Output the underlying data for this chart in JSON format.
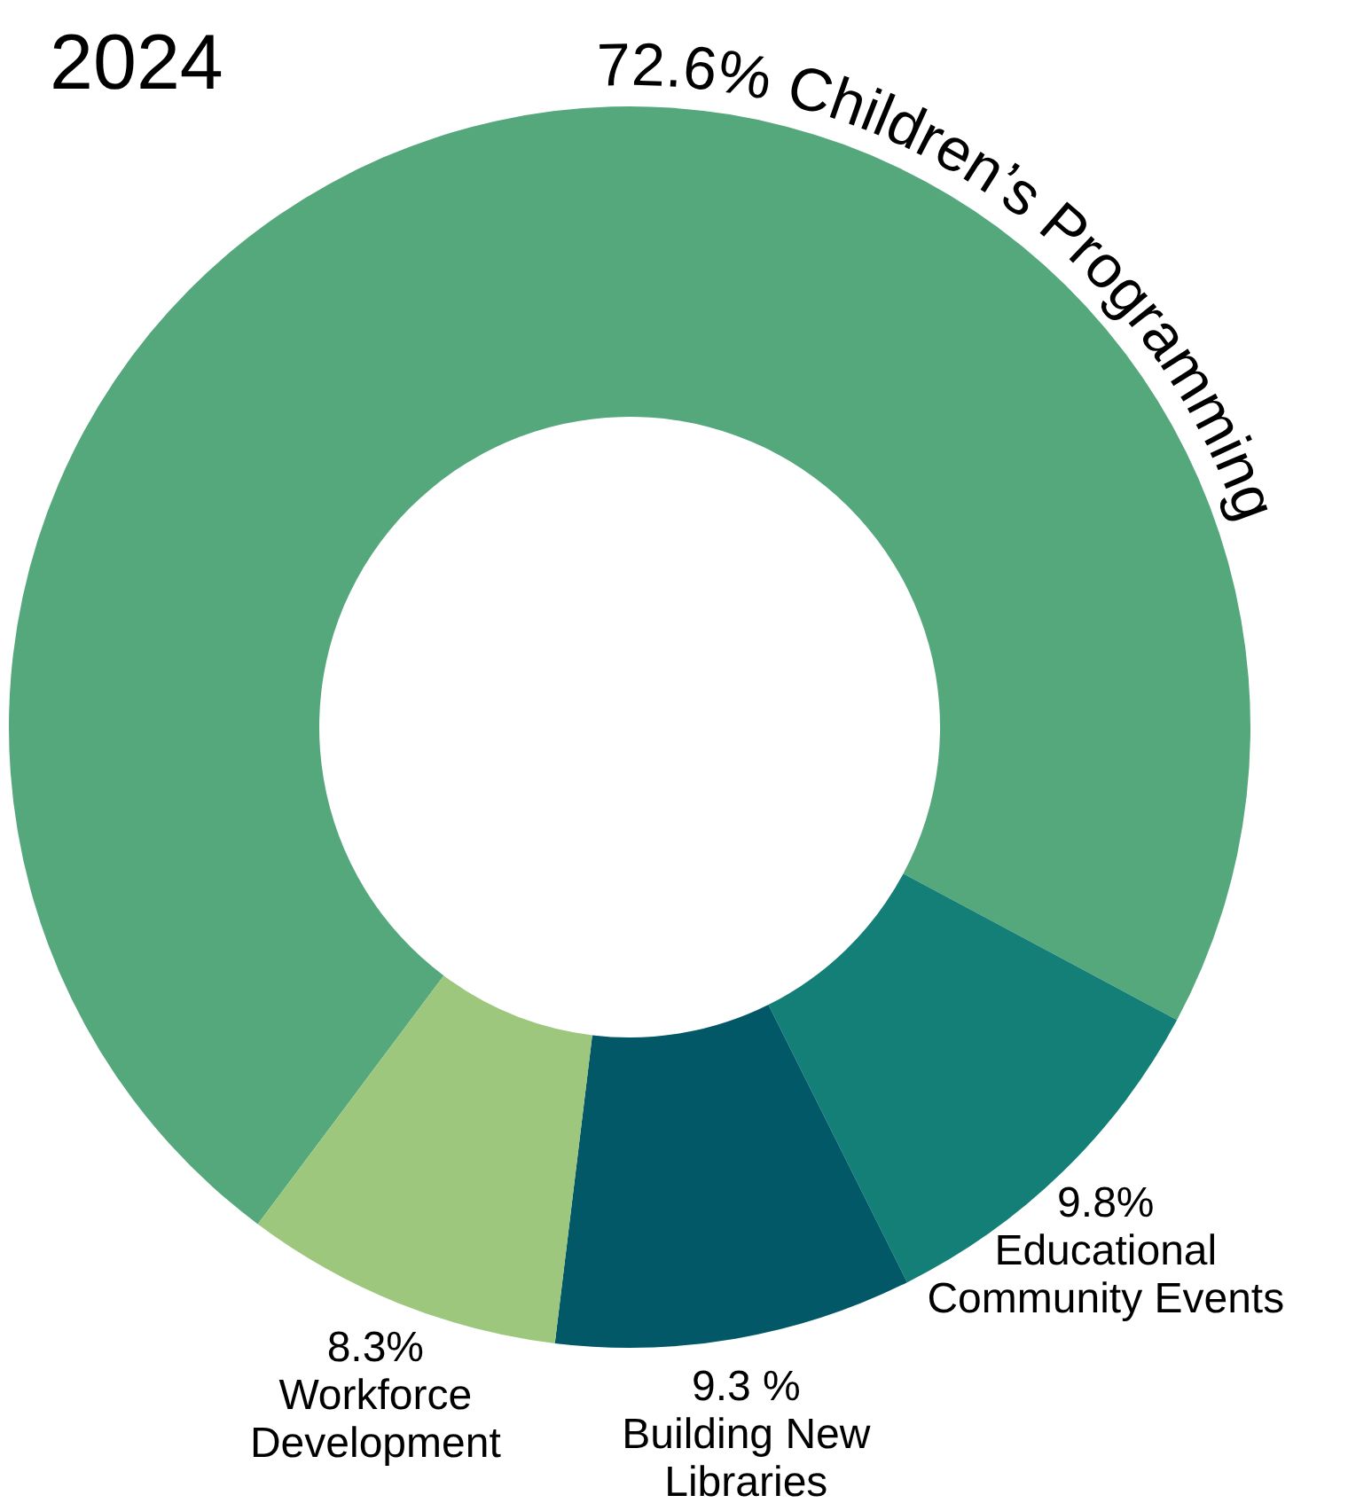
{
  "chart_data": {
    "type": "donut",
    "title": "2024",
    "categories": [
      "Children’s Programming",
      "Educational Community Events",
      "Building New Libraries",
      "Workforce Development"
    ],
    "values": [
      72.6,
      9.8,
      9.3,
      8.3
    ],
    "value_labels": [
      "72.6%",
      "9.8%",
      "9.3 %",
      "8.3%"
    ],
    "colors": [
      "#55a77c",
      "#137f77",
      "#035868",
      "#9dc77c"
    ]
  }
}
